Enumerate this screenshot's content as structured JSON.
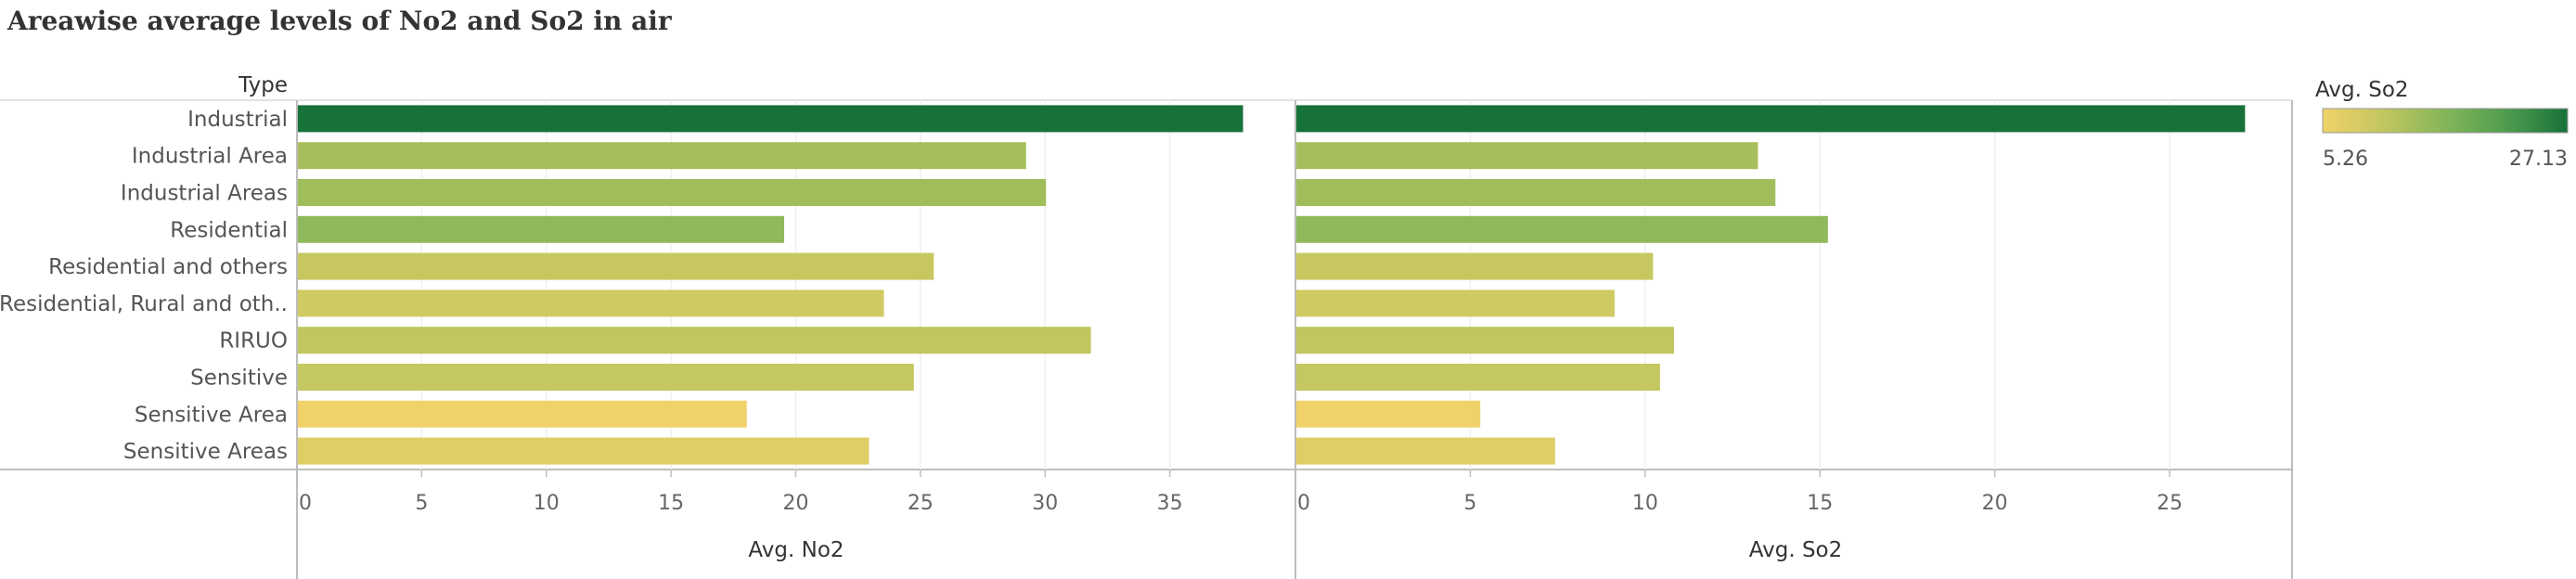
{
  "title": "Areawise average levels of No2 and So2 in air",
  "chart_data": {
    "type": "bar",
    "orientation": "horizontal",
    "row_header": "Type",
    "categories": [
      "Industrial",
      "Industrial Area",
      "Industrial Areas",
      "Residential",
      "Residential and others",
      "Residential, Rural and oth..",
      "RIRUO",
      "Sensitive",
      "Sensitive Area",
      "Sensitive Areas"
    ],
    "panels": [
      {
        "name": "Avg. No2",
        "xlabel": "Avg. No2",
        "values": [
          37.9,
          29.2,
          30.0,
          19.5,
          25.5,
          23.5,
          31.8,
          24.7,
          18.0,
          22.9
        ],
        "xlim": [
          0,
          40
        ],
        "ticks": [
          0,
          5,
          10,
          15,
          20,
          25,
          30,
          35
        ]
      },
      {
        "name": "Avg. So2",
        "xlabel": "Avg. So2",
        "values": [
          27.13,
          13.2,
          13.7,
          15.2,
          10.2,
          9.1,
          10.8,
          10.4,
          5.26,
          7.4
        ],
        "xlim": [
          0,
          28.5
        ],
        "ticks": [
          0,
          5,
          10,
          15,
          20,
          25
        ]
      }
    ],
    "color_legend": {
      "title": "Avg. So2",
      "min_label": "5.26",
      "max_label": "27.13",
      "min": 5.26,
      "max": 27.13,
      "colors": [
        "#f1d26a",
        "#c2c65f",
        "#84b659",
        "#4f9c4f",
        "#177239"
      ],
      "placement": "top-right"
    },
    "grid": true
  }
}
